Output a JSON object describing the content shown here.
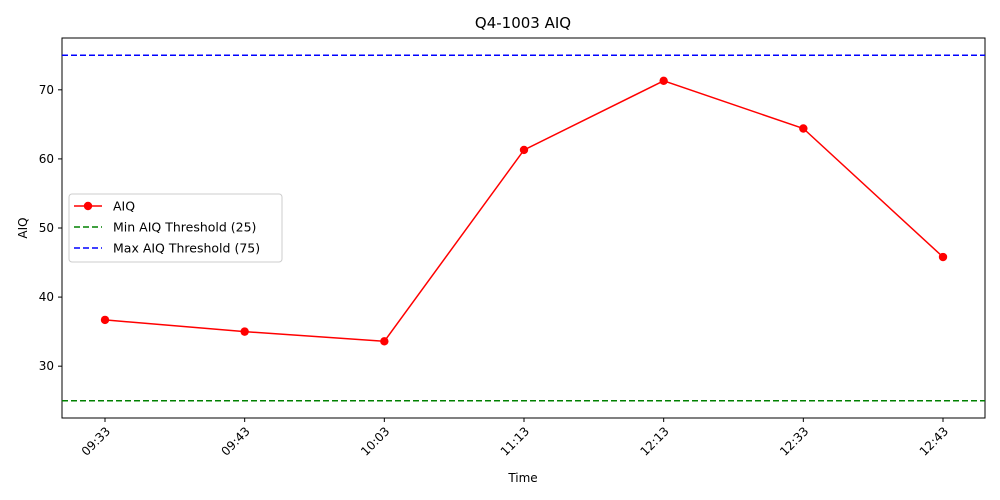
{
  "chart_data": {
    "type": "line",
    "title": "Q4-1003 AIQ",
    "xlabel": "Time",
    "ylabel": "AIQ",
    "categories": [
      "09:33",
      "09:43",
      "10:03",
      "11:13",
      "12:13",
      "12:33",
      "12:43"
    ],
    "series": [
      {
        "name": "AIQ",
        "values": [
          36.7,
          35.0,
          33.6,
          61.3,
          71.3,
          64.4,
          45.8
        ],
        "color": "#ff0000",
        "marker": "circle"
      }
    ],
    "thresholds": [
      {
        "name": "Min AIQ Threshold (25)",
        "value": 25,
        "color": "#008000",
        "style": "dashed"
      },
      {
        "name": "Max AIQ Threshold (75)",
        "value": 75,
        "color": "#0000ff",
        "style": "dashed"
      }
    ],
    "ylim": [
      22.5,
      77.5
    ],
    "yticks": [
      30,
      40,
      50,
      60,
      70
    ],
    "grid": false,
    "legend_position": "center-left"
  }
}
